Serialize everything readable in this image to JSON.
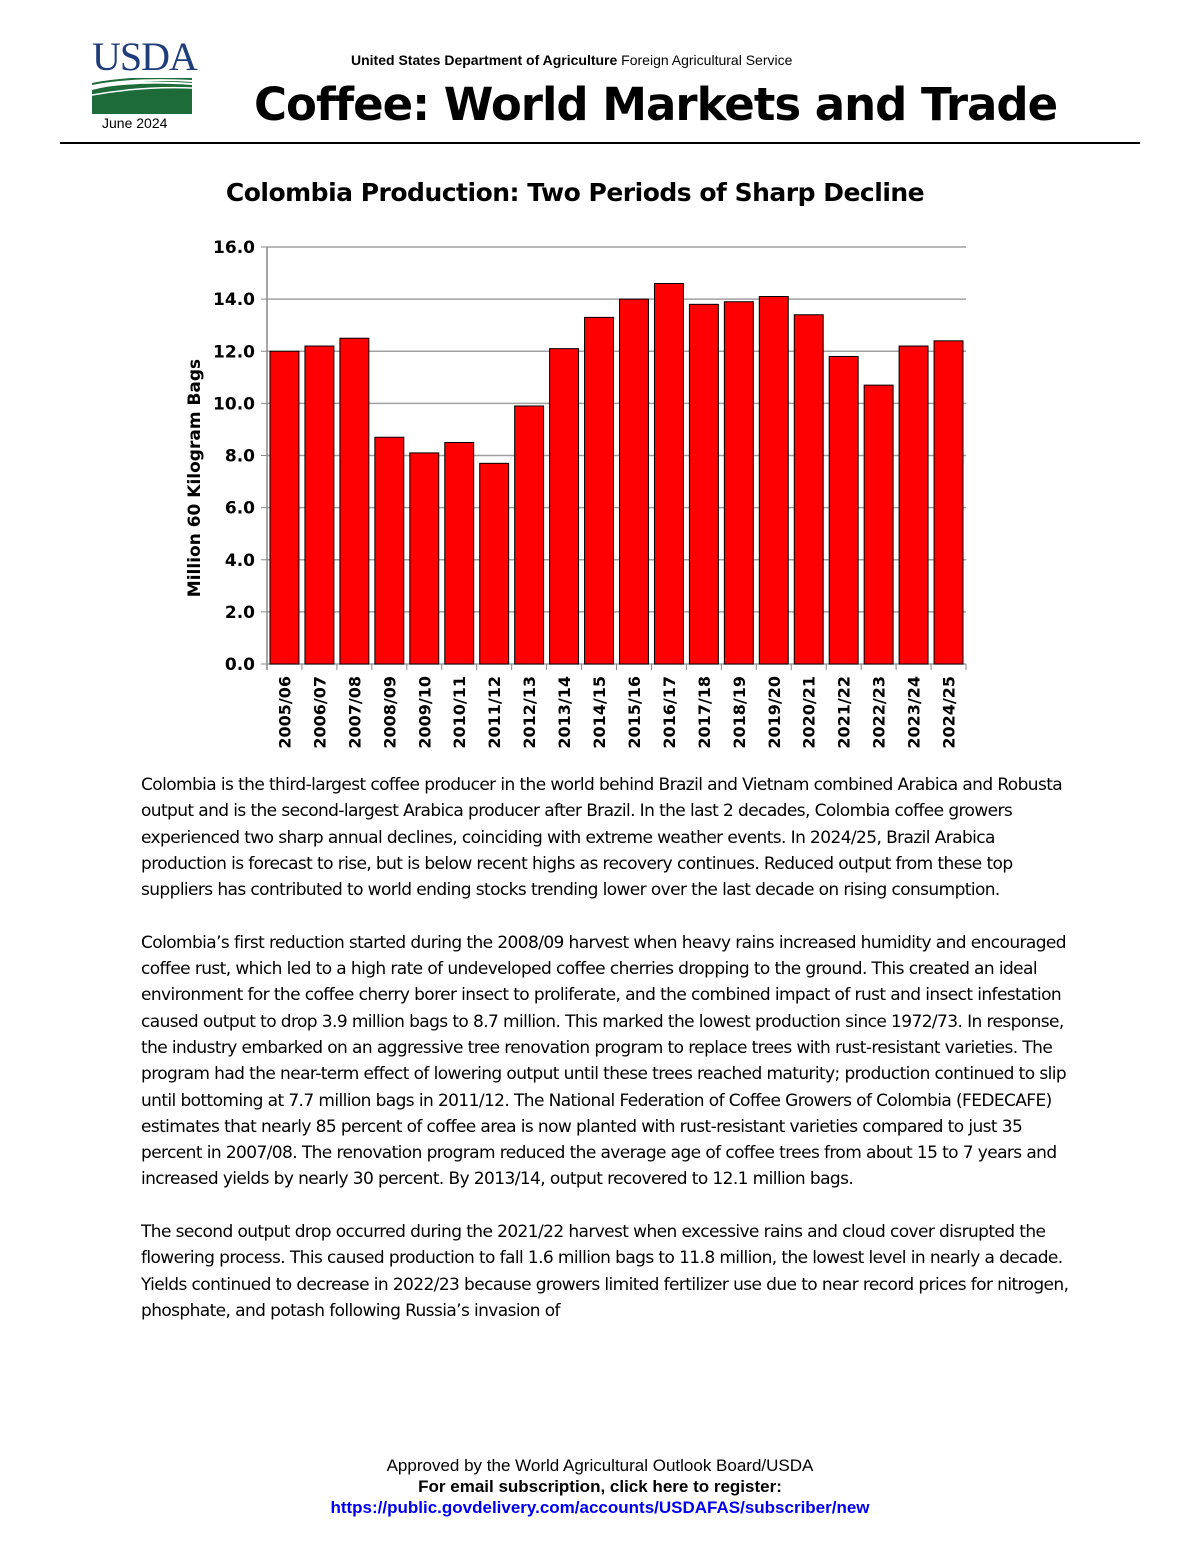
{
  "header": {
    "logo_text": "USDA",
    "date": "June 2024",
    "agency_bold": "United States Department of Agriculture",
    "agency_rest": " Foreign Agricultural Service",
    "title": "Coffee: World Markets and Trade"
  },
  "chart_data": {
    "type": "bar",
    "title": "Colombia Production: Two Periods of Sharp Decline",
    "ylabel": "Million 60 Kilogram Bags",
    "xlabel": "",
    "ylim": [
      0,
      16
    ],
    "yticks": [
      "0.0",
      "2.0",
      "4.0",
      "6.0",
      "8.0",
      "10.0",
      "12.0",
      "14.0",
      "16.0"
    ],
    "grid": true,
    "categories": [
      "2005/06",
      "2006/07",
      "2007/08",
      "2008/09",
      "2009/10",
      "2010/11",
      "2011/12",
      "2012/13",
      "2013/14",
      "2014/15",
      "2015/16",
      "2016/17",
      "2017/18",
      "2018/19",
      "2019/20",
      "2020/21",
      "2021/22",
      "2022/23",
      "2023/24",
      "2024/25"
    ],
    "values": [
      12.0,
      12.2,
      12.5,
      8.7,
      8.1,
      8.5,
      7.7,
      9.9,
      12.1,
      13.3,
      14.0,
      14.6,
      13.8,
      13.9,
      14.1,
      13.4,
      11.8,
      10.7,
      12.2,
      12.4
    ],
    "bar_color": "#ff0000"
  },
  "body": {
    "paragraphs": [
      "Colombia is the third-largest coffee producer in the world behind Brazil and Vietnam combined Arabica and Robusta output and is the second-largest Arabica producer after Brazil. In the last 2 decades, Colombia coffee growers experienced two sharp annual declines, coinciding with extreme weather events. In 2024/25, Brazil Arabica production is forecast to rise, but is below recent highs as recovery continues. Reduced output from these top suppliers has contributed to world ending stocks trending lower over the last decade on rising consumption.",
      "Colombia’s first reduction started during the 2008/09 harvest when heavy rains increased humidity and encouraged coffee rust, which led to a high rate of undeveloped coffee cherries dropping to the ground. This created an ideal environment for the coffee cherry borer insect to proliferate, and the combined impact of rust and insect infestation caused output to drop 3.9 million bags to 8.7 million. This marked the lowest production since 1972/73. In response, the industry embarked on an aggressive tree renovation program to replace trees with rust-resistant varieties. The program had the near-term effect of lowering output until these trees reached maturity; production continued to slip until bottoming at 7.7 million bags in 2011/12. The National Federation of Coffee Growers of Colombia (FEDECAFE) estimates that nearly 85 percent of coffee area is now planted with rust-resistant varieties compared to just 35 percent in 2007/08. The renovation program reduced the average age of coffee trees from about 15 to 7 years and increased yields by nearly 30 percent. By 2013/14, output recovered to 12.1 million bags.",
      "The second output drop occurred during the 2021/22 harvest when excessive rains and cloud cover disrupted the flowering process. This caused production to fall 1.6 million bags to 11.8 million, the lowest level in nearly a decade. Yields continued to decrease in 2022/23 because growers limited fertilizer use due to near record prices for nitrogen, phosphate, and potash following Russia’s invasion of"
    ]
  },
  "footer": {
    "approved": "Approved by the World Agricultural Outlook Board/USDA",
    "subscribe": "For email subscription, click here to register:",
    "link": "https://public.govdelivery.com/accounts/USDAFAS/subscriber/new"
  }
}
